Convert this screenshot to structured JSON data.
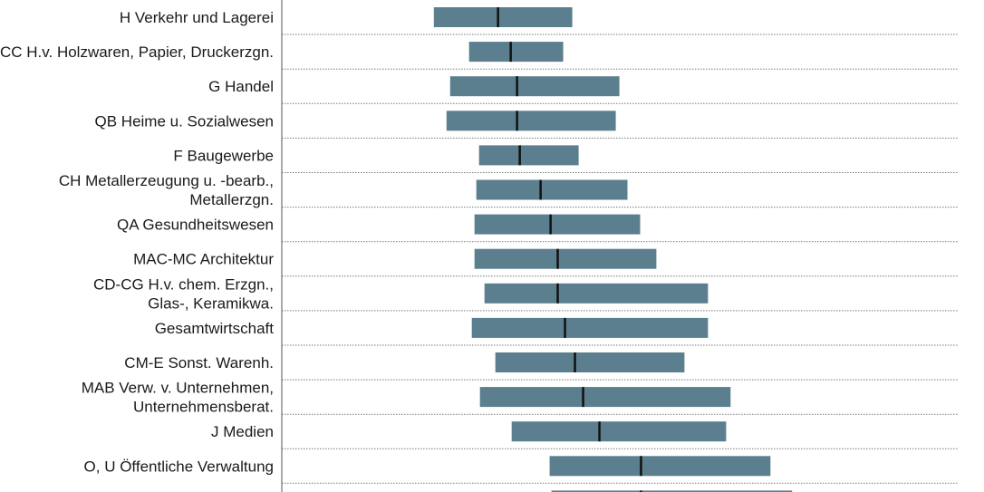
{
  "chart_data": {
    "type": "range-bar",
    "colors": {
      "bar": "#5b7f8e",
      "median": "#111111"
    },
    "categories": [
      [
        "H Verkehr und Lagerei"
      ],
      [
        "CC H.v. Holzwaren, Papier, Druckerzgn."
      ],
      [
        "G Handel"
      ],
      [
        "QB Heime u. Sozialwesen"
      ],
      [
        "F Baugewerbe"
      ],
      [
        "CH Metallerzeugung u. -bearb.,",
        "Metallerzgn."
      ],
      [
        "QA Gesundheitswesen"
      ],
      [
        "MAC-MC Architektur"
      ],
      [
        "CD-CG H.v. chem. Erzgn.,",
        "Glas-, Keramikwa."
      ],
      [
        "Gesamtwirtschaft"
      ],
      [
        "CM-E Sonst. Warenh."
      ],
      [
        "MAB Verw. v. Unternehmen,",
        "Unternehmensberat."
      ],
      [
        "J Medien"
      ],
      [
        "O, U Öffentliche Verwaltung"
      ],
      [
        ""
      ]
    ],
    "series": [
      {
        "low": [
          478,
          517,
          496,
          492,
          528,
          525,
          523,
          523,
          534,
          520,
          546,
          529,
          564,
          606,
          608
        ],
        "median": [
          549,
          563,
          570,
          570,
          573,
          596,
          607,
          615,
          615,
          623,
          634,
          643,
          661,
          707,
          707
        ],
        "high": [
          631,
          621,
          683,
          679,
          638,
          692,
          706,
          724,
          781,
          781,
          755,
          806,
          801,
          850,
          874
        ]
      }
    ],
    "xlim": [
      310,
      1058
    ],
    "grid": true
  }
}
